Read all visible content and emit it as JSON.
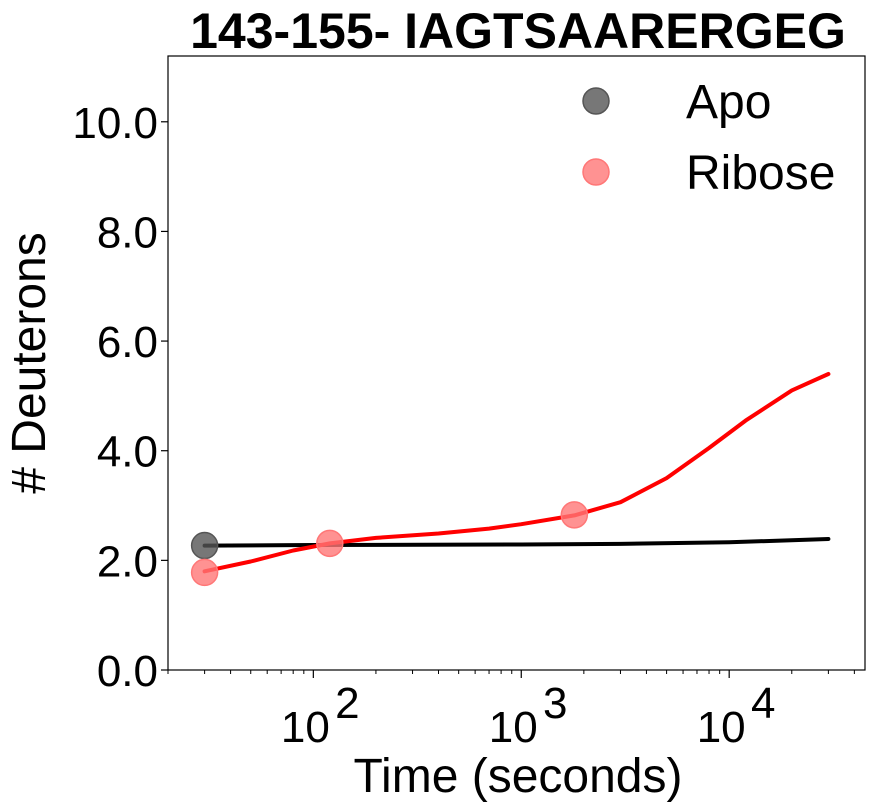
{
  "chart_data": {
    "type": "line",
    "title": "143-155- IAGTSAARERGEG",
    "xlabel": "Time (seconds)",
    "ylabel": "# Deuterons",
    "x_scale": "log",
    "xlim": [
      20,
      45000
    ],
    "ylim": [
      0,
      11.2
    ],
    "x_ticks": [
      {
        "value": 100,
        "base": "10",
        "exp": "2"
      },
      {
        "value": 1000,
        "base": "10",
        "exp": "3"
      },
      {
        "value": 10000,
        "base": "10",
        "exp": "4"
      }
    ],
    "y_ticks": [
      {
        "value": 0,
        "label": "0.0"
      },
      {
        "value": 2,
        "label": "2.0"
      },
      {
        "value": 4,
        "label": "4.0"
      },
      {
        "value": 6,
        "label": "6.0"
      },
      {
        "value": 8,
        "label": "8.0"
      },
      {
        "value": 10,
        "label": "10.0"
      }
    ],
    "grid": false,
    "legend_position": "top-right",
    "series": [
      {
        "name": "Apo",
        "color": "#555555",
        "points": [
          {
            "x": 30,
            "y": 2.27
          }
        ],
        "fit_color": "#000000",
        "fit": [
          {
            "x": 30,
            "y": 2.27
          },
          {
            "x": 100,
            "y": 2.28
          },
          {
            "x": 1000,
            "y": 2.29
          },
          {
            "x": 3000,
            "y": 2.3
          },
          {
            "x": 10000,
            "y": 2.33
          },
          {
            "x": 30000,
            "y": 2.39
          }
        ]
      },
      {
        "name": "Ribose",
        "color": "#ff7777",
        "points": [
          {
            "x": 30,
            "y": 1.78
          },
          {
            "x": 120,
            "y": 2.31
          },
          {
            "x": 1800,
            "y": 2.83
          }
        ],
        "fit_color": "#ff0000",
        "fit": [
          {
            "x": 30,
            "y": 1.8
          },
          {
            "x": 50,
            "y": 1.98
          },
          {
            "x": 80,
            "y": 2.18
          },
          {
            "x": 120,
            "y": 2.31
          },
          {
            "x": 200,
            "y": 2.41
          },
          {
            "x": 400,
            "y": 2.49
          },
          {
            "x": 700,
            "y": 2.58
          },
          {
            "x": 1000,
            "y": 2.66
          },
          {
            "x": 1800,
            "y": 2.82
          },
          {
            "x": 3000,
            "y": 3.06
          },
          {
            "x": 5000,
            "y": 3.5
          },
          {
            "x": 8000,
            "y": 4.05
          },
          {
            "x": 12000,
            "y": 4.55
          },
          {
            "x": 20000,
            "y": 5.1
          },
          {
            "x": 30000,
            "y": 5.4
          }
        ]
      }
    ]
  }
}
